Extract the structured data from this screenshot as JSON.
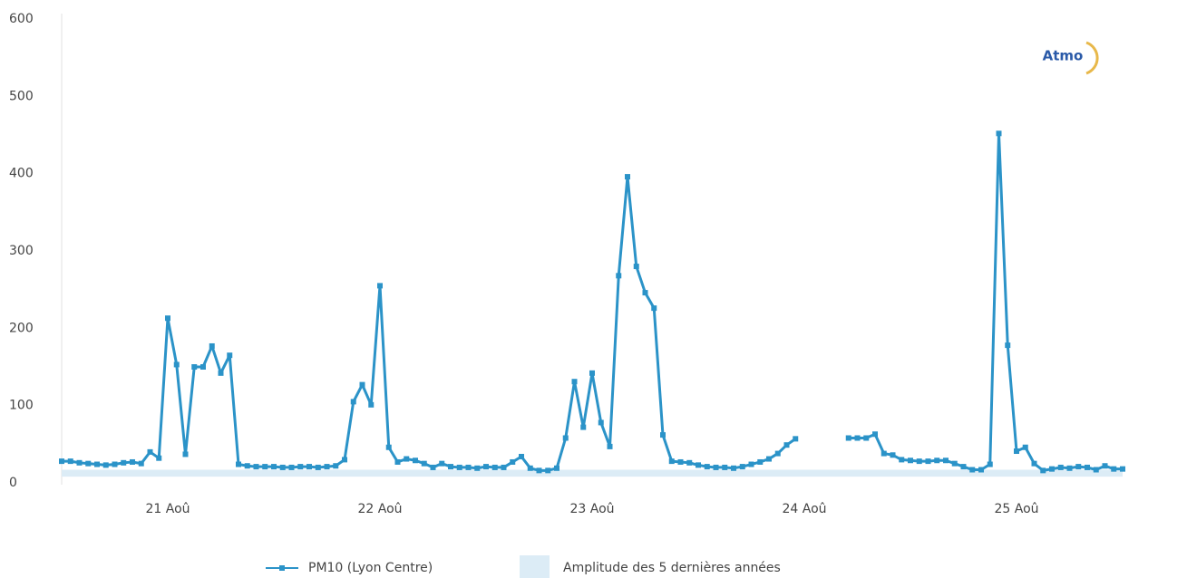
{
  "chart_data": {
    "type": "line",
    "logo": "Atmo",
    "categories": [
      null,
      null,
      null,
      null,
      null,
      null,
      null,
      null,
      null,
      null,
      null,
      null,
      "21 Aoû",
      null,
      null,
      null,
      null,
      null,
      null,
      null,
      null,
      null,
      null,
      null,
      null,
      null,
      null,
      null,
      null,
      null,
      null,
      null,
      null,
      null,
      null,
      null,
      "22 Aoû",
      null,
      null,
      null,
      null,
      null,
      null,
      null,
      null,
      null,
      null,
      null,
      null,
      null,
      null,
      null,
      null,
      null,
      null,
      null,
      null,
      null,
      null,
      null,
      "23 Aoû",
      null,
      null,
      null,
      null,
      null,
      null,
      null,
      null,
      null,
      null,
      null,
      null,
      null,
      null,
      null,
      null,
      null,
      null,
      null,
      null,
      null,
      null,
      null,
      "24 Aoû",
      null,
      null,
      null,
      null,
      null,
      null,
      null,
      null,
      null,
      null,
      null,
      null,
      null,
      null,
      null,
      null,
      null,
      null,
      null,
      null,
      null,
      null,
      null,
      "25 Aoû",
      null,
      null,
      null,
      null,
      null,
      null,
      null,
      null,
      null,
      null,
      null,
      null
    ],
    "series": [
      {
        "name": "PM10 (Lyon Centre)",
        "color": "#2b93c8",
        "values": [
          28,
          28,
          26,
          25,
          24,
          23,
          24,
          26,
          27,
          25,
          40,
          32,
          213,
          153,
          37,
          150,
          150,
          177,
          142,
          165,
          24,
          22,
          21,
          21,
          21,
          20,
          20,
          21,
          21,
          20,
          21,
          22,
          30,
          105,
          127,
          101,
          255,
          46,
          27,
          31,
          29,
          25,
          20,
          25,
          21,
          20,
          20,
          19,
          21,
          20,
          20,
          27,
          34,
          19,
          16,
          16,
          19,
          58,
          131,
          72,
          142,
          78,
          47,
          268,
          396,
          280,
          246,
          226,
          62,
          28,
          27,
          26,
          23,
          21,
          20,
          20,
          19,
          21,
          24,
          27,
          31,
          38,
          49,
          57,
          null,
          null,
          null,
          null,
          null,
          58,
          58,
          58,
          63,
          38,
          36,
          30,
          29,
          28,
          28,
          29,
          29,
          25,
          21,
          17,
          17,
          24,
          452,
          178,
          41,
          46,
          25,
          16,
          18,
          20,
          19,
          21,
          20,
          17,
          22,
          18,
          18
        ]
      },
      {
        "name": "Amplitude des 5 dernières années",
        "color": "#dcecf6",
        "type": "range",
        "low": [
          8,
          8,
          8,
          8,
          8,
          8,
          8,
          8,
          8,
          8,
          8,
          8,
          8,
          8,
          8,
          8,
          8,
          8,
          8,
          8,
          8,
          8,
          8,
          8,
          8,
          8,
          8,
          8,
          8,
          8,
          8,
          8,
          8,
          8,
          8,
          8,
          8,
          8,
          8,
          8,
          8,
          8,
          8,
          8,
          8,
          8,
          8,
          8,
          8,
          8,
          8,
          8,
          8,
          8,
          8,
          8,
          8,
          8,
          8,
          8,
          8,
          8,
          8,
          8,
          8,
          8,
          8,
          8,
          8,
          8,
          8,
          8,
          8,
          8,
          8,
          8,
          8,
          8,
          8,
          8,
          8,
          8,
          8,
          8,
          8,
          8,
          8,
          8,
          8,
          8,
          8,
          8,
          8,
          8,
          8,
          8,
          8,
          8,
          8,
          8,
          8,
          8,
          8,
          8,
          8,
          8,
          8,
          8,
          8,
          8,
          8,
          8,
          8,
          8,
          8,
          8,
          8,
          8,
          8,
          8,
          8
        ],
        "high": [
          17,
          17,
          17,
          17,
          17,
          17,
          17,
          17,
          17,
          17,
          17,
          17,
          17,
          17,
          17,
          17,
          17,
          17,
          17,
          17,
          17,
          17,
          17,
          17,
          17,
          17,
          17,
          17,
          17,
          17,
          17,
          17,
          17,
          17,
          17,
          17,
          17,
          17,
          17,
          17,
          17,
          17,
          17,
          17,
          17,
          17,
          17,
          17,
          17,
          17,
          17,
          17,
          17,
          17,
          17,
          17,
          17,
          17,
          17,
          17,
          17,
          17,
          17,
          17,
          17,
          17,
          17,
          17,
          17,
          17,
          17,
          17,
          17,
          17,
          17,
          17,
          17,
          17,
          17,
          17,
          17,
          17,
          17,
          17,
          17,
          17,
          17,
          17,
          17,
          17,
          17,
          17,
          17,
          17,
          17,
          17,
          17,
          17,
          17,
          17,
          17,
          17,
          17,
          17,
          17,
          17,
          17,
          17,
          17,
          17,
          17,
          17,
          17,
          17,
          17,
          17,
          17,
          17,
          17,
          17,
          17
        ]
      }
    ],
    "ylim": [
      0,
      600
    ],
    "yticks": [
      0,
      100,
      200,
      300,
      400,
      500,
      600
    ],
    "grid": false
  }
}
